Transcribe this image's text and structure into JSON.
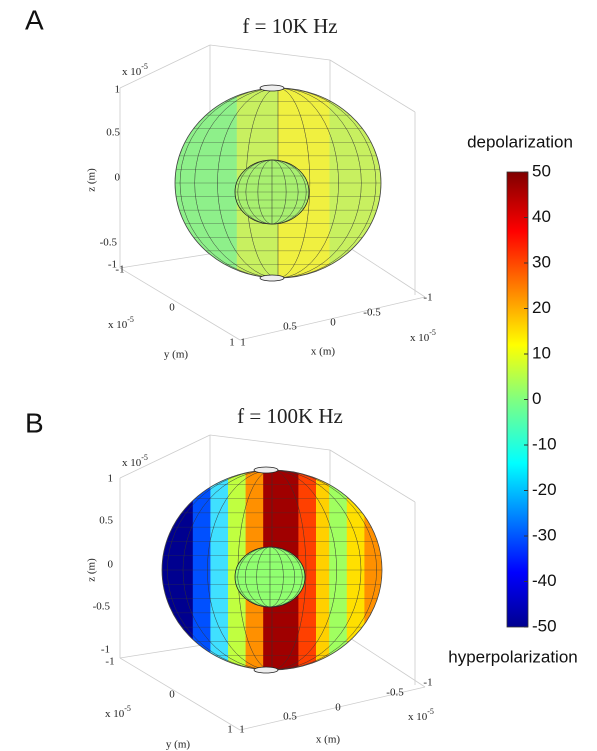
{
  "panels": [
    {
      "label": "A",
      "title": "f = 10K Hz",
      "z_ticks": [
        "1",
        "0.5",
        "0",
        "-0.5",
        "-1"
      ],
      "y_ticks": [
        "-1",
        "0",
        "1"
      ],
      "x_ticks": [
        "1",
        "0.5",
        "0",
        "-0.5",
        "-1"
      ],
      "multiplier": "x 10",
      "exponent": "-5",
      "z_label": "z (m)",
      "y_label": "y (m)",
      "x_label": "x (m)"
    },
    {
      "label": "B",
      "title": "f = 100K Hz",
      "z_ticks": [
        "1",
        "0.5",
        "0",
        "-0.5",
        "-1"
      ],
      "y_ticks": [
        "-1",
        "0",
        "1"
      ],
      "x_ticks": [
        "1",
        "0.5",
        "0",
        "-0.5",
        "-1"
      ],
      "multiplier": "x 10",
      "exponent": "-5",
      "z_label": "z (m)",
      "y_label": "y (m)",
      "x_label": "x (m)"
    }
  ],
  "colorbar": {
    "top_label": "depolarization",
    "bottom_label": "hyperpolarization",
    "range": [
      -50,
      50
    ],
    "ticks": [
      50,
      40,
      30,
      20,
      10,
      0,
      -10,
      -20,
      -30,
      -40,
      -50
    ]
  }
}
